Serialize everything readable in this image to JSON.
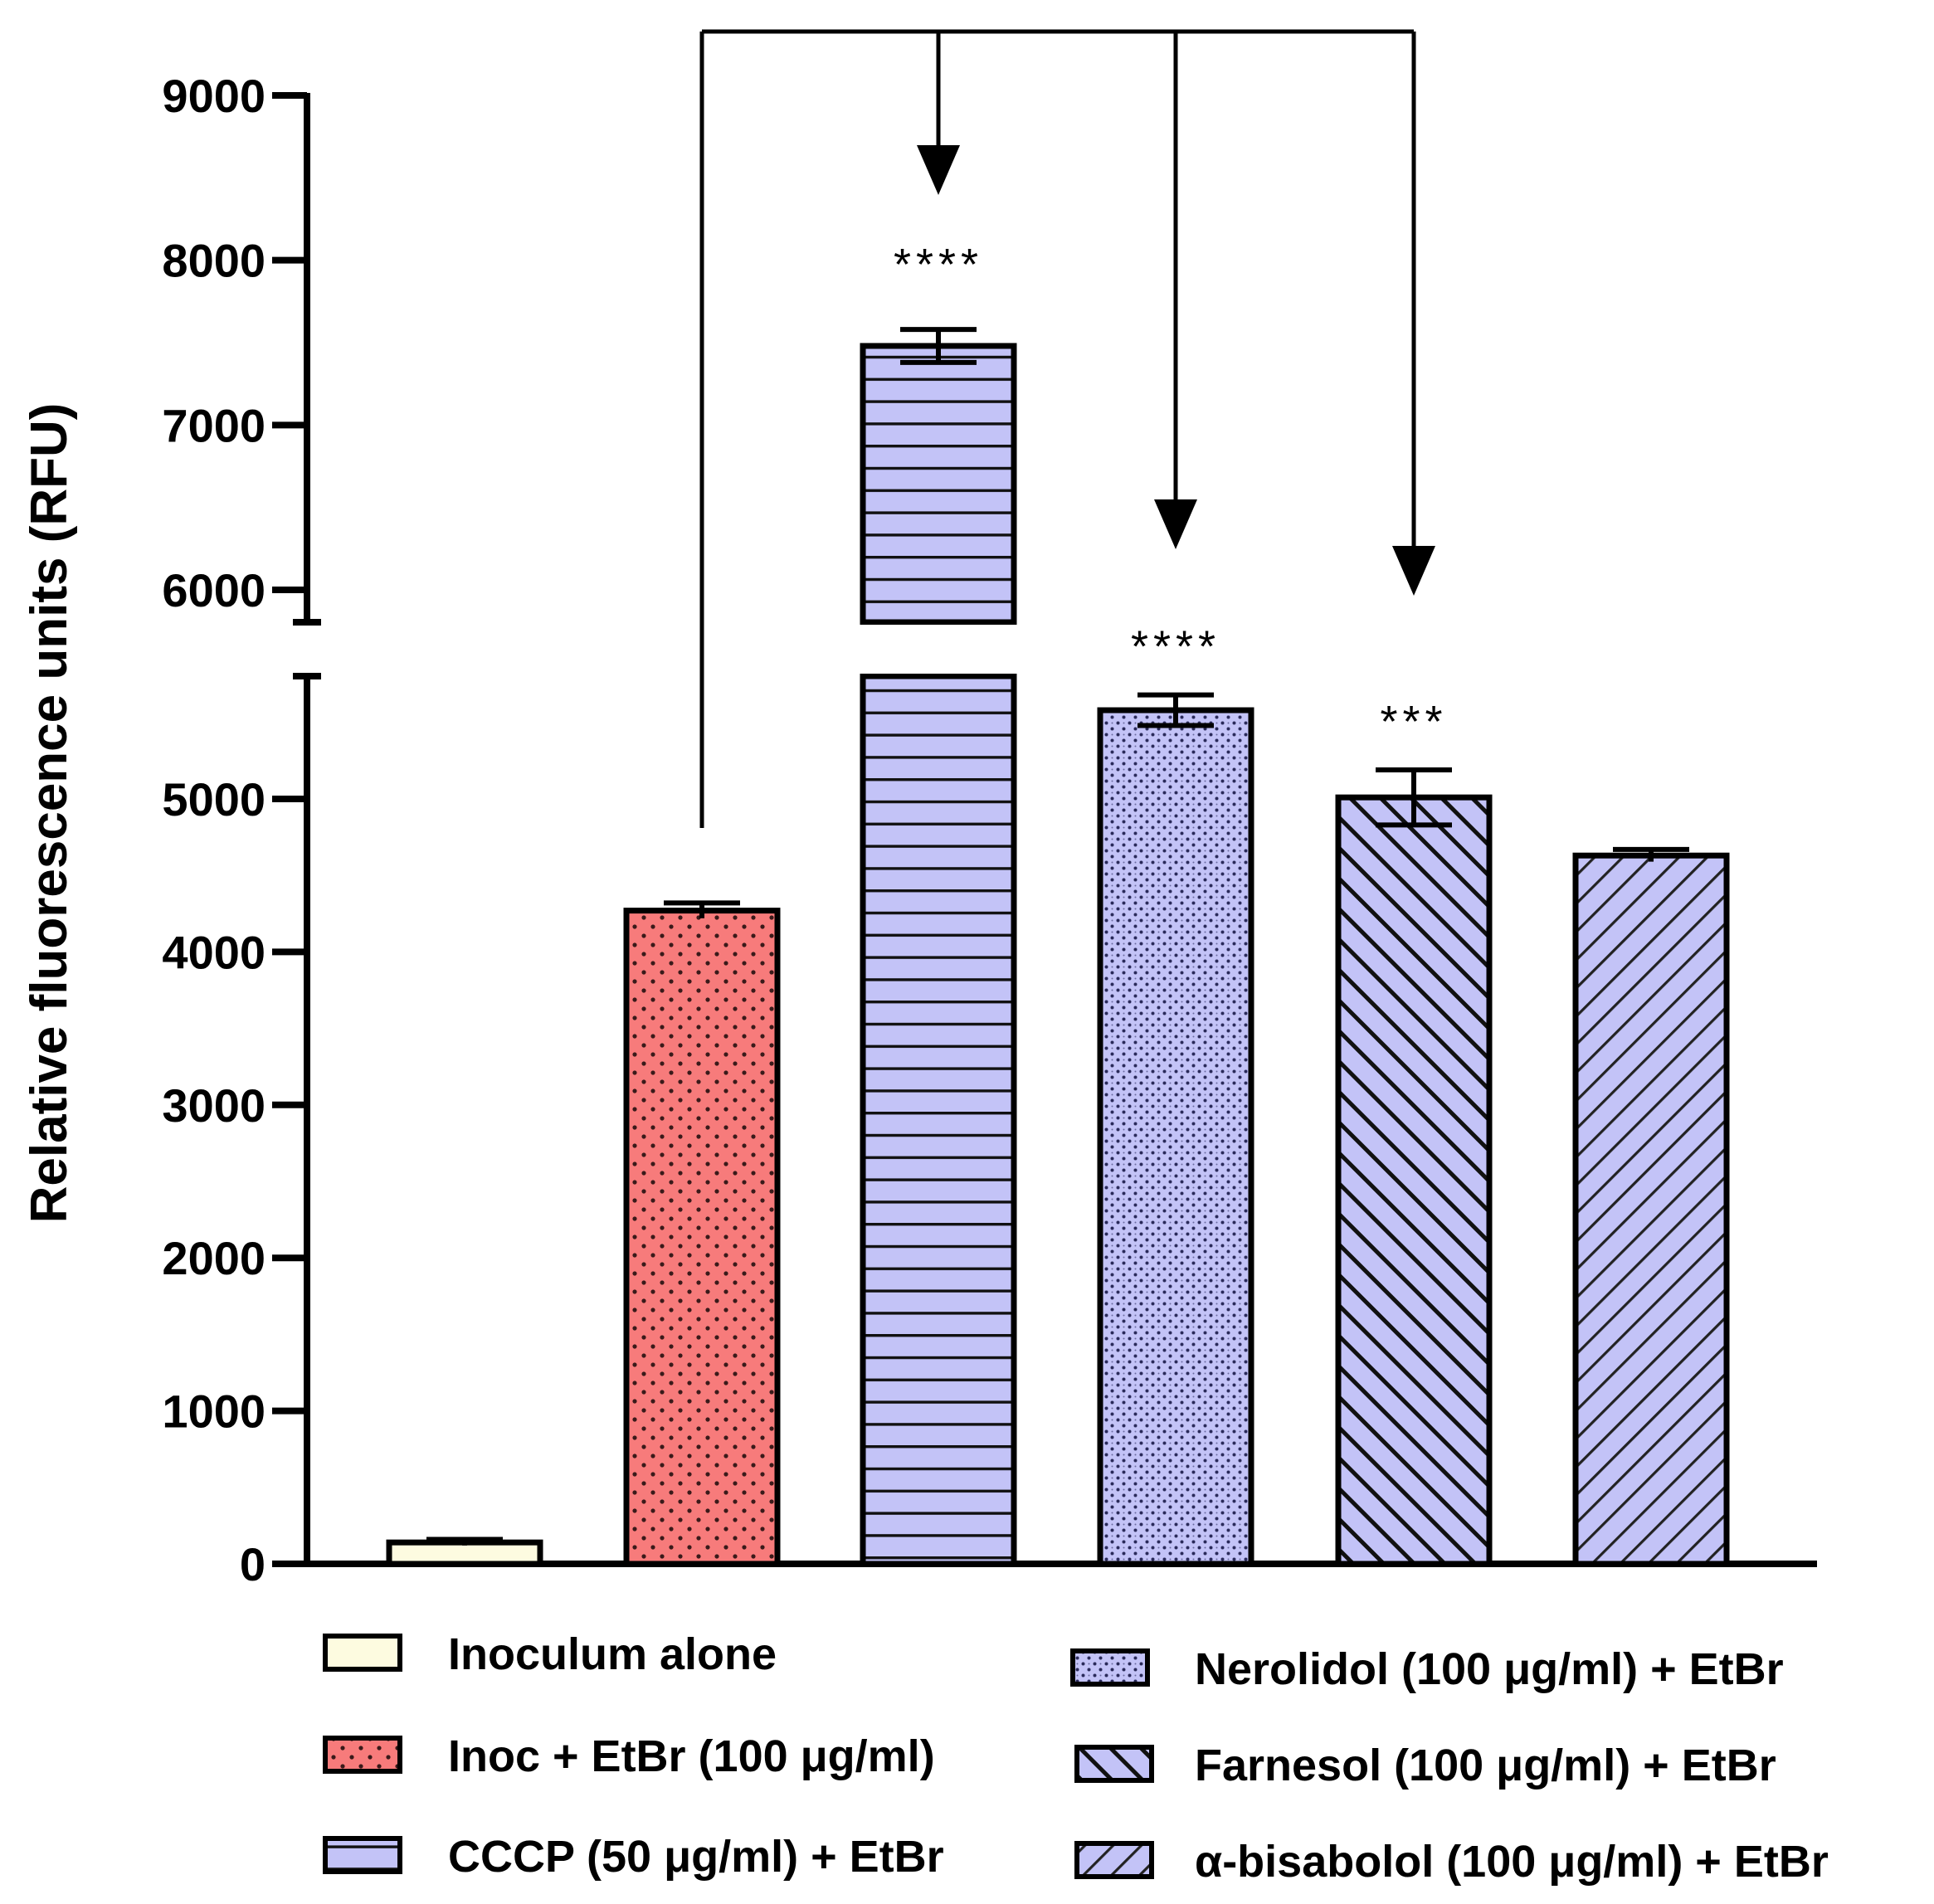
{
  "chart_data": {
    "type": "bar",
    "ylabel": "Relative fluorescence units (RFU)",
    "xlabel": "",
    "axis_break": {
      "lower_max": 5800,
      "upper_min": 5800
    },
    "ylim_lower": [
      0,
      5800
    ],
    "ylim_upper": [
      5800,
      9000
    ],
    "yticks_lower": [
      "0",
      "1000",
      "2000",
      "3000",
      "4000",
      "5000"
    ],
    "yticks_upper": [
      "6000",
      "7000",
      "8000",
      "9000"
    ],
    "categories": [
      "Inoculum alone",
      "Inoc + EtBr (100 μg/ml)",
      "CCCP (50 μg/ml) + EtBr",
      "Nerolidol (100 μg/ml) + EtBr",
      "Farnesol (100 μg/ml) + EtBr",
      "α-bisabolol (100 μg/ml) + EtBr"
    ],
    "values": [
      140,
      4270,
      7480,
      5580,
      5010,
      4630
    ],
    "errors": [
      20,
      50,
      100,
      100,
      180,
      40
    ],
    "significance": [
      "",
      "",
      "****",
      "****",
      "***",
      ""
    ],
    "fills": [
      "#fdfbe0",
      "#f77b7b",
      "#c3c3f7",
      "#c3c3f7",
      "#c3c3f7",
      "#c3c3f7"
    ],
    "patterns": [
      "none",
      "dots",
      "hlines",
      "crosshatch-dots",
      "diag-up",
      "diag-down"
    ],
    "comparison_bracket": {
      "from": 1,
      "to": [
        2,
        3,
        4
      ]
    },
    "legend": {
      "placement": "bottom",
      "entries": [
        "Inoculum alone",
        "Inoc + EtBr (100 μg/ml)",
        "CCCP (50 μg/ml) + EtBr",
        "Nerolidol (100 μg/ml) + EtBr",
        "Farnesol (100 μg/ml) + EtBr",
        "α-bisabolol (100 μg/ml) + EtBr"
      ]
    }
  }
}
